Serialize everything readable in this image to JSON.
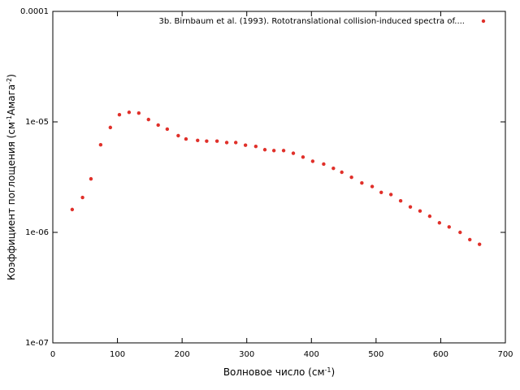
{
  "chart_data": {
    "type": "scatter",
    "xlabel": [
      "Волновое число (см",
      "-1",
      ")"
    ],
    "ylabel": [
      "Коэффициент поглощения (см",
      "-1",
      "Амага",
      "-2",
      ")"
    ],
    "xlim": [
      0,
      700
    ],
    "xticks": [
      0,
      100,
      200,
      300,
      400,
      500,
      600,
      700
    ],
    "ylim": [
      1e-07,
      0.0001
    ],
    "yticks": [
      {
        "value": 0.0001,
        "label": "0.0001"
      },
      {
        "value": 1e-05,
        "label": "1e-05"
      },
      {
        "value": 1e-06,
        "label": "1e-06"
      },
      {
        "value": 1e-07,
        "label": "1e-07"
      }
    ],
    "log_y": true,
    "legend": "top-right",
    "series": [
      {
        "name": "3b. Birnbaum et al. (1993). Rototranslational collision-induced spectra of....",
        "color": "#e0302a",
        "x": [
          30,
          46,
          59,
          74,
          89,
          103,
          118,
          133,
          148,
          163,
          177,
          194,
          206,
          224,
          238,
          254,
          269,
          283,
          298,
          314,
          328,
          342,
          357,
          372,
          387,
          402,
          419,
          434,
          447,
          462,
          478,
          494,
          508,
          523,
          538,
          553,
          568,
          583,
          598,
          613,
          630,
          645,
          660
        ],
        "values": [
          1.61e-06,
          2.07e-06,
          3.05e-06,
          6.2e-06,
          8.9e-06,
          1.16e-05,
          1.22e-05,
          1.2e-05,
          1.05e-05,
          9.35e-06,
          8.6e-06,
          7.5e-06,
          7e-06,
          6.8e-06,
          6.7e-06,
          6.7e-06,
          6.5e-06,
          6.5e-06,
          6.15e-06,
          6e-06,
          5.6e-06,
          5.5e-06,
          5.5e-06,
          5.2e-06,
          4.8e-06,
          4.4e-06,
          4.15e-06,
          3.8e-06,
          3.5e-06,
          3.15e-06,
          2.8e-06,
          2.6e-06,
          2.3e-06,
          2.2e-06,
          1.93e-06,
          1.7e-06,
          1.56e-06,
          1.4e-06,
          1.22e-06,
          1.12e-06,
          1e-06,
          8.6e-07,
          7.8e-07
        ]
      }
    ]
  }
}
